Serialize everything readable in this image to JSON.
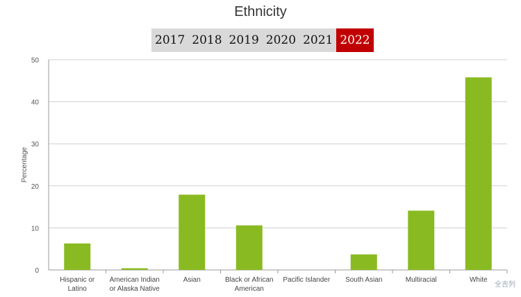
{
  "header": {
    "years": [
      "2017",
      "2018",
      "2019",
      "2020",
      "2021",
      "2022"
    ],
    "selected_year": "2022"
  },
  "chart_data": {
    "type": "bar",
    "title": "Ethnicity",
    "ylabel": "Percentage",
    "xlabel": "",
    "ylim": [
      0,
      50
    ],
    "yticks": [
      0,
      10,
      20,
      30,
      40,
      50
    ],
    "grid": true,
    "bar_color": "#8aba22",
    "categories": [
      "Hispanic or Latino",
      "American Indian or Alaska Native",
      "Asian",
      "Black or African American",
      "Pacific Islander",
      "South Asian",
      "Multiracial",
      "White"
    ],
    "category_lines": [
      [
        "Hispanic or",
        "Latino"
      ],
      [
        "American Indian",
        "or Alaska Native"
      ],
      [
        "Asian"
      ],
      [
        "Black or African",
        "American"
      ],
      [
        "Pacific Islander"
      ],
      [
        "South Asian"
      ],
      [
        "Multiracial"
      ],
      [
        "White"
      ]
    ],
    "values": [
      6.3,
      0.4,
      17.9,
      10.6,
      0,
      3.7,
      14.1,
      45.8
    ]
  },
  "watermark": "全吉列"
}
